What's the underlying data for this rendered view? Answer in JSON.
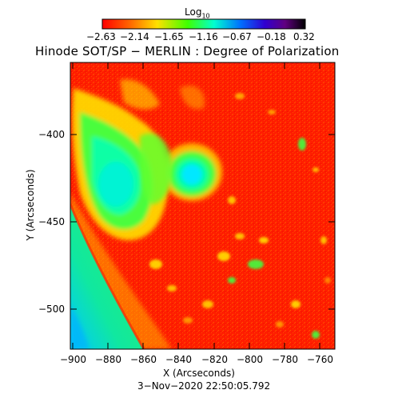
{
  "colorbar": {
    "label_base": "Log",
    "label_sub": "10",
    "ticks": [
      "−2.63",
      "−2.14",
      "−1.65",
      "−1.16",
      "−0.67",
      "−0.18",
      "0.32"
    ]
  },
  "title": "Hinode SOT/SP − MERLIN : Degree of Polarization",
  "x_axis": {
    "label": "X (Arcseconds)",
    "ticks": [
      "−900",
      "−880",
      "−860",
      "−840",
      "−820",
      "−800",
      "−780",
      "−760"
    ]
  },
  "y_axis": {
    "label": "Y (Arcseconds)",
    "ticks": [
      "−400",
      "−450",
      "−500"
    ]
  },
  "timestamp": "3−Nov−2020 22:50:05.792",
  "colors": {
    "background_low": "#ff1a00",
    "mid": "#00ff80",
    "high": "#00d0ff",
    "off_limb": "#20e070"
  }
}
